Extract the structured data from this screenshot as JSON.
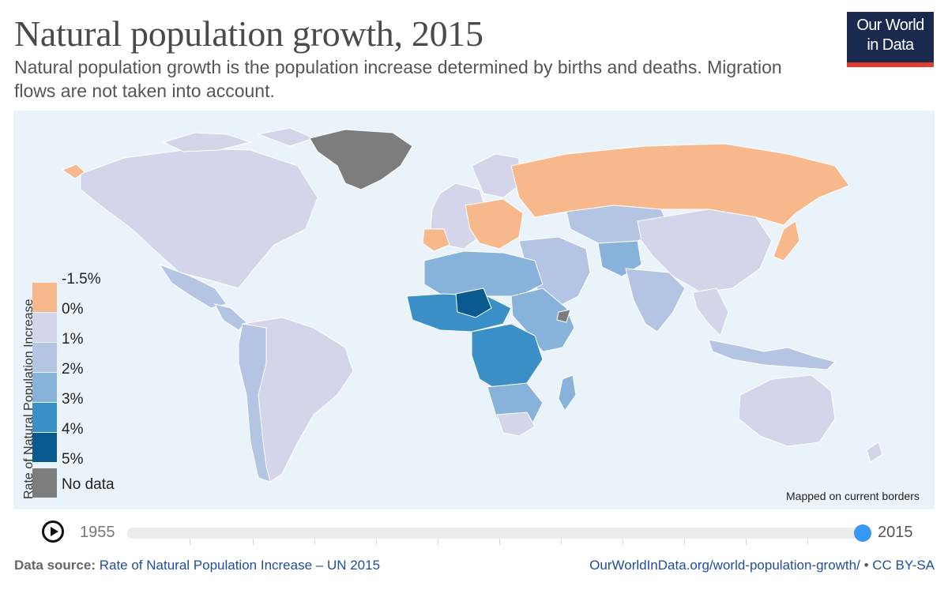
{
  "header": {
    "title": "Natural population growth, 2015",
    "subtitle": "Natural population growth is the population increase determined by births and deaths. Migration flows are not taken into account."
  },
  "logo": {
    "line1": "Our World",
    "line2": "in Data"
  },
  "legend": {
    "axis_label": "Rate of Natural Population Increase",
    "tick_labels": [
      "-1.5%",
      "0%",
      "1%",
      "2%",
      "3%",
      "4%",
      "5%"
    ],
    "bins": [
      {
        "range": "-1.5% to 0%",
        "color": "#f7b88c"
      },
      {
        "range": "0% to 1%",
        "color": "#d4d4ea"
      },
      {
        "range": "1% to 2%",
        "color": "#b3c5e3"
      },
      {
        "range": "2% to 3%",
        "color": "#87b2d9"
      },
      {
        "range": "3% to 4%",
        "color": "#3a8fc6"
      },
      {
        "range": "4% to 5%",
        "color": "#0b5a8f"
      }
    ],
    "no_data": {
      "label": "No data",
      "color": "#7d7d7d"
    }
  },
  "map": {
    "note": "Mapped on current borders",
    "ocean_color": "#eaf3f9"
  },
  "timeline": {
    "start_year": "1955",
    "end_year": "2015",
    "selected_year": 2015,
    "thumb_color": "#3a98f5"
  },
  "footer": {
    "source_label": "Data source:",
    "source_text": "Rate of Natural Population Increase – UN 2015",
    "url": "OurWorldInData.org/world-population-growth/",
    "separator": "•",
    "license": "CC BY-SA"
  }
}
